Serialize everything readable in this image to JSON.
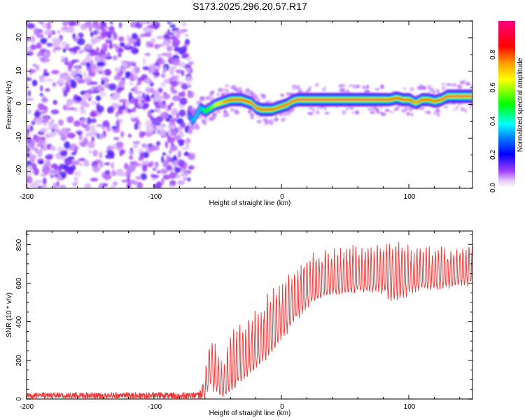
{
  "chart_data": [
    {
      "type": "heatmap",
      "title": "S173.2025.296.20.57.R17",
      "xlabel": "Height of straight line (km)",
      "ylabel": "Frequency (Hz)",
      "xlim": [
        -200,
        150
      ],
      "ylim": [
        -25,
        25
      ],
      "xticks": [
        -200,
        -100,
        0,
        100
      ],
      "xtick_labels": [
        "-200",
        "-100",
        "0",
        "100"
      ],
      "yticks": [
        -20,
        -10,
        0,
        10,
        20
      ],
      "ytick_labels": [
        "-20",
        "-10",
        "0",
        "10",
        "20"
      ],
      "noise_region_x": [
        -200,
        -73
      ],
      "ridge": {
        "description": "Frequency ridge of maximum spectral amplitude vs height",
        "x": [
          -73,
          -70,
          -67,
          -64,
          -60,
          -56,
          -52,
          -48,
          -44,
          -40,
          -36,
          -32,
          -28,
          -24,
          -20,
          -16,
          -12,
          -8,
          -4,
          0,
          4,
          8,
          12,
          16,
          20,
          30,
          40,
          50,
          60,
          70,
          80,
          85,
          90,
          95,
          100,
          105,
          110,
          115,
          120,
          125,
          130,
          140,
          150
        ],
        "frequency": [
          -3,
          -5,
          -3,
          -1,
          -2,
          -1,
          0,
          0.5,
          1,
          1.5,
          1.5,
          1.5,
          1,
          0.5,
          -1,
          -1.5,
          -1.5,
          -1.5,
          -1,
          -0.5,
          0,
          1,
          1.5,
          1.5,
          1.5,
          1.5,
          1.5,
          1.5,
          1.5,
          1.5,
          1.5,
          1.5,
          2,
          1.5,
          1.5,
          0.5,
          1.5,
          1.5,
          1,
          1.5,
          2.5,
          2.5,
          2.5
        ],
        "amplitude": [
          0.3,
          0.35,
          0.4,
          0.45,
          0.5,
          0.55,
          0.65,
          0.7,
          0.8,
          0.85,
          0.9,
          0.9,
          0.85,
          0.8,
          0.85,
          0.9,
          0.9,
          0.85,
          0.8,
          0.85,
          0.9,
          0.9,
          0.95,
          0.95,
          0.95,
          0.95,
          0.95,
          0.95,
          0.95,
          0.95,
          0.9,
          0.85,
          0.9,
          0.85,
          0.9,
          0.75,
          0.85,
          0.85,
          0.8,
          0.85,
          0.95,
          0.95,
          0.95
        ]
      },
      "colorbar": {
        "label": "Normalized spectral amplitude",
        "range": [
          0.0,
          1.0
        ],
        "ticks": [
          0.0,
          0.2,
          0.4,
          0.6,
          0.8
        ],
        "tick_labels": [
          "0.0",
          "0.2",
          "0.4",
          "0.6",
          "0.8"
        ],
        "colormap": [
          "#ffffff",
          "#d9b3ff",
          "#8000ff",
          "#0000ff",
          "#00ffff",
          "#00ff00",
          "#ffff00",
          "#ff8000",
          "#ff0000",
          "#ff0080"
        ]
      }
    },
    {
      "type": "line",
      "xlabel": "Height of straight line (km)",
      "ylabel": "SNR (10 * v/v)",
      "xlim": [
        -200,
        150
      ],
      "ylim": [
        0,
        870
      ],
      "xticks": [
        -200,
        -100,
        0,
        100
      ],
      "xtick_labels": [
        "-200",
        "-100",
        "0",
        "100"
      ],
      "yticks": [
        0,
        200,
        400,
        600,
        800
      ],
      "ytick_labels": [
        "0",
        "200",
        "400",
        "600",
        "800"
      ],
      "color": "#f03030",
      "series": [
        {
          "name": "SNR",
          "envelope_x": [
            -200,
            -150,
            -100,
            -65,
            -60,
            -57,
            -55,
            -52,
            -48,
            -45,
            -40,
            -35,
            -30,
            -25,
            -20,
            -15,
            -10,
            -5,
            0,
            5,
            10,
            15,
            20,
            30,
            40,
            50,
            60,
            70,
            80,
            90,
            100,
            110,
            120,
            130,
            140,
            150
          ],
          "baseline": [
            18,
            18,
            18,
            18,
            40,
            120,
            150,
            110,
            70,
            40,
            90,
            130,
            160,
            190,
            220,
            260,
            300,
            340,
            380,
            420,
            460,
            500,
            540,
            560,
            580,
            590,
            600,
            600,
            610,
            620,
            600,
            610,
            620,
            630,
            640,
            650
          ],
          "peak": [
            40,
            40,
            40,
            40,
            120,
            350,
            360,
            300,
            200,
            220,
            360,
            400,
            430,
            450,
            460,
            500,
            570,
            600,
            620,
            650,
            690,
            720,
            760,
            780,
            800,
            800,
            800,
            800,
            810,
            860,
            800,
            790,
            790,
            790,
            800,
            800
          ],
          "trough": [
            5,
            5,
            5,
            5,
            10,
            30,
            60,
            20,
            5,
            15,
            40,
            60,
            90,
            110,
            150,
            180,
            210,
            240,
            300,
            340,
            390,
            420,
            460,
            520,
            540,
            540,
            550,
            550,
            540,
            480,
            540,
            560,
            560,
            570,
            580,
            580
          ]
        }
      ]
    }
  ]
}
